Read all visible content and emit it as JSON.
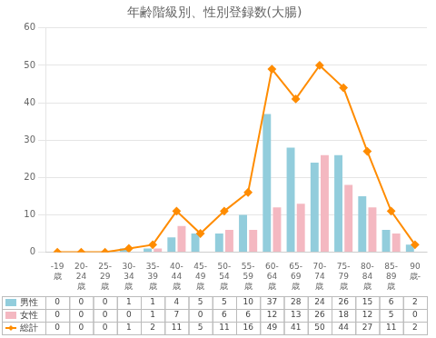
{
  "chart_data": {
    "type": "bar",
    "title": "年齢階級別、性別登録数(大腸)",
    "categories": [
      "-19\n歳",
      "20-\n24\n歳",
      "25-\n29\n歳",
      "30-\n34\n歳",
      "35-\n39\n歳",
      "40-\n44\n歳",
      "45-\n49\n歳",
      "50-\n54\n歳",
      "55-\n59\n歳",
      "60-\n64\n歳",
      "65-\n69\n歳",
      "70-\n74\n歳",
      "75-\n79\n歳",
      "80-\n84\n歳",
      "85-\n89\n歳",
      "90\n歳-"
    ],
    "series": [
      {
        "name": "男性",
        "type": "bar",
        "color": "#92CDDC",
        "values": [
          0,
          0,
          0,
          1,
          1,
          4,
          5,
          5,
          10,
          37,
          28,
          24,
          26,
          15,
          6,
          2
        ]
      },
      {
        "name": "女性",
        "type": "bar",
        "color": "#F4B8C1",
        "values": [
          0,
          0,
          0,
          0,
          1,
          7,
          0,
          6,
          6,
          12,
          13,
          26,
          18,
          12,
          5,
          0
        ]
      },
      {
        "name": "総計",
        "type": "line",
        "color": "#FF8C00",
        "marker": "diamond",
        "values": [
          0,
          0,
          0,
          1,
          2,
          11,
          5,
          11,
          16,
          49,
          41,
          50,
          44,
          27,
          11,
          2
        ]
      }
    ],
    "ylim": [
      0,
      60
    ],
    "yticks": [
      0,
      10,
      20,
      30,
      40,
      50,
      60
    ],
    "grid": true,
    "data_labels": true
  }
}
